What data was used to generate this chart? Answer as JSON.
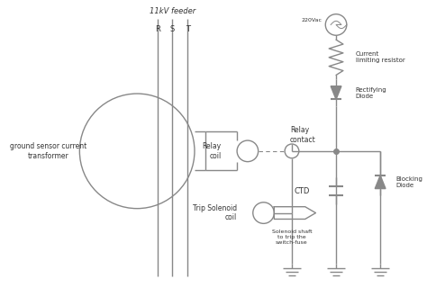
{
  "bg_color": "#ffffff",
  "line_color": "#888888",
  "text_color": "#333333",
  "feeder_label": "11kV feeder",
  "rst_labels": [
    "R",
    "S",
    "T"
  ],
  "gs_label": "ground sensor current\ntransformer",
  "relay_coil_label": "Relay\ncoil",
  "relay_contact_label": "Relay\ncontact",
  "trip_sol_label": "Trip Solenoid\ncoil",
  "sol_shaft_label": "Solenoid shaft\nto trip the\nswitch-fuse",
  "ctd_label": "CTD",
  "supply_label": "220Vac",
  "res_label": "Current\nlimiting resistor",
  "rect_diode_label": "Rectifying\nDiode",
  "block_diode_label": "Blocking\nDiode"
}
